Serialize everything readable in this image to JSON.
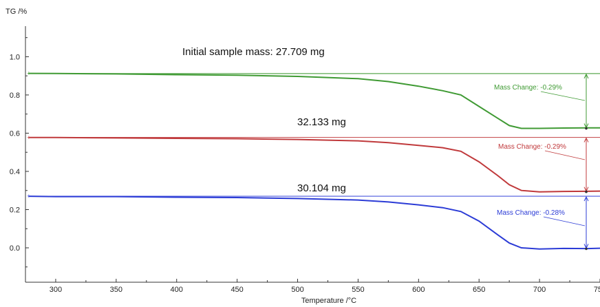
{
  "chart_data": {
    "type": "line",
    "ylabel": "TG /%",
    "xlabel": "Temperature /°C",
    "xlim": [
      275,
      750
    ],
    "ylim": [
      -0.18,
      1.16
    ],
    "x_ticks": [
      300,
      350,
      400,
      450,
      500,
      550,
      600,
      650,
      700,
      750
    ],
    "y_ticks": [
      0.0,
      0.2,
      0.4,
      0.6,
      0.8,
      1.0
    ],
    "x_tick_labels": [
      "300",
      "350",
      "400",
      "450",
      "500",
      "550",
      "600",
      "650",
      "700",
      "750"
    ],
    "y_tick_labels": [
      "0.0",
      "0.2",
      "0.4",
      "0.6",
      "0.8",
      "1.0"
    ],
    "grid": false,
    "series": [
      {
        "color": "#3f9a33",
        "sample_label": "Initial sample mass: 27.709 mg",
        "annotation": "Mass Change: -0.29%",
        "reference_level": 0.912,
        "end_level": 0.625,
        "points": [
          [
            278,
            0.913
          ],
          [
            300,
            0.912
          ],
          [
            350,
            0.91
          ],
          [
            400,
            0.906
          ],
          [
            450,
            0.903
          ],
          [
            500,
            0.897
          ],
          [
            550,
            0.885
          ],
          [
            575,
            0.87
          ],
          [
            600,
            0.846
          ],
          [
            620,
            0.822
          ],
          [
            635,
            0.8
          ],
          [
            650,
            0.74
          ],
          [
            665,
            0.68
          ],
          [
            675,
            0.64
          ],
          [
            685,
            0.625
          ],
          [
            700,
            0.625
          ],
          [
            720,
            0.627
          ],
          [
            740,
            0.628
          ],
          [
            750,
            0.628
          ]
        ]
      },
      {
        "color": "#c0393b",
        "sample_label": "32.133 mg",
        "annotation": "Mass Change: -0.29%",
        "reference_level": 0.578,
        "end_level": 0.293,
        "points": [
          [
            278,
            0.577
          ],
          [
            300,
            0.577
          ],
          [
            350,
            0.575
          ],
          [
            400,
            0.573
          ],
          [
            450,
            0.571
          ],
          [
            500,
            0.567
          ],
          [
            550,
            0.56
          ],
          [
            575,
            0.55
          ],
          [
            600,
            0.536
          ],
          [
            620,
            0.524
          ],
          [
            635,
            0.505
          ],
          [
            650,
            0.45
          ],
          [
            665,
            0.38
          ],
          [
            675,
            0.33
          ],
          [
            685,
            0.3
          ],
          [
            700,
            0.293
          ],
          [
            720,
            0.295
          ],
          [
            740,
            0.296
          ],
          [
            750,
            0.297
          ]
        ]
      },
      {
        "color": "#2b3bd6",
        "sample_label": "30.104 mg",
        "annotation": "Mass Change: -0.28%",
        "reference_level": 0.27,
        "end_level": -0.005,
        "points": [
          [
            278,
            0.27
          ],
          [
            300,
            0.268
          ],
          [
            350,
            0.268
          ],
          [
            400,
            0.265
          ],
          [
            450,
            0.263
          ],
          [
            500,
            0.258
          ],
          [
            550,
            0.25
          ],
          [
            575,
            0.24
          ],
          [
            600,
            0.225
          ],
          [
            620,
            0.21
          ],
          [
            635,
            0.19
          ],
          [
            650,
            0.14
          ],
          [
            665,
            0.07
          ],
          [
            675,
            0.025
          ],
          [
            685,
            0.0
          ],
          [
            700,
            -0.006
          ],
          [
            720,
            -0.003
          ],
          [
            740,
            -0.004
          ],
          [
            750,
            -0.002
          ]
        ]
      }
    ]
  }
}
